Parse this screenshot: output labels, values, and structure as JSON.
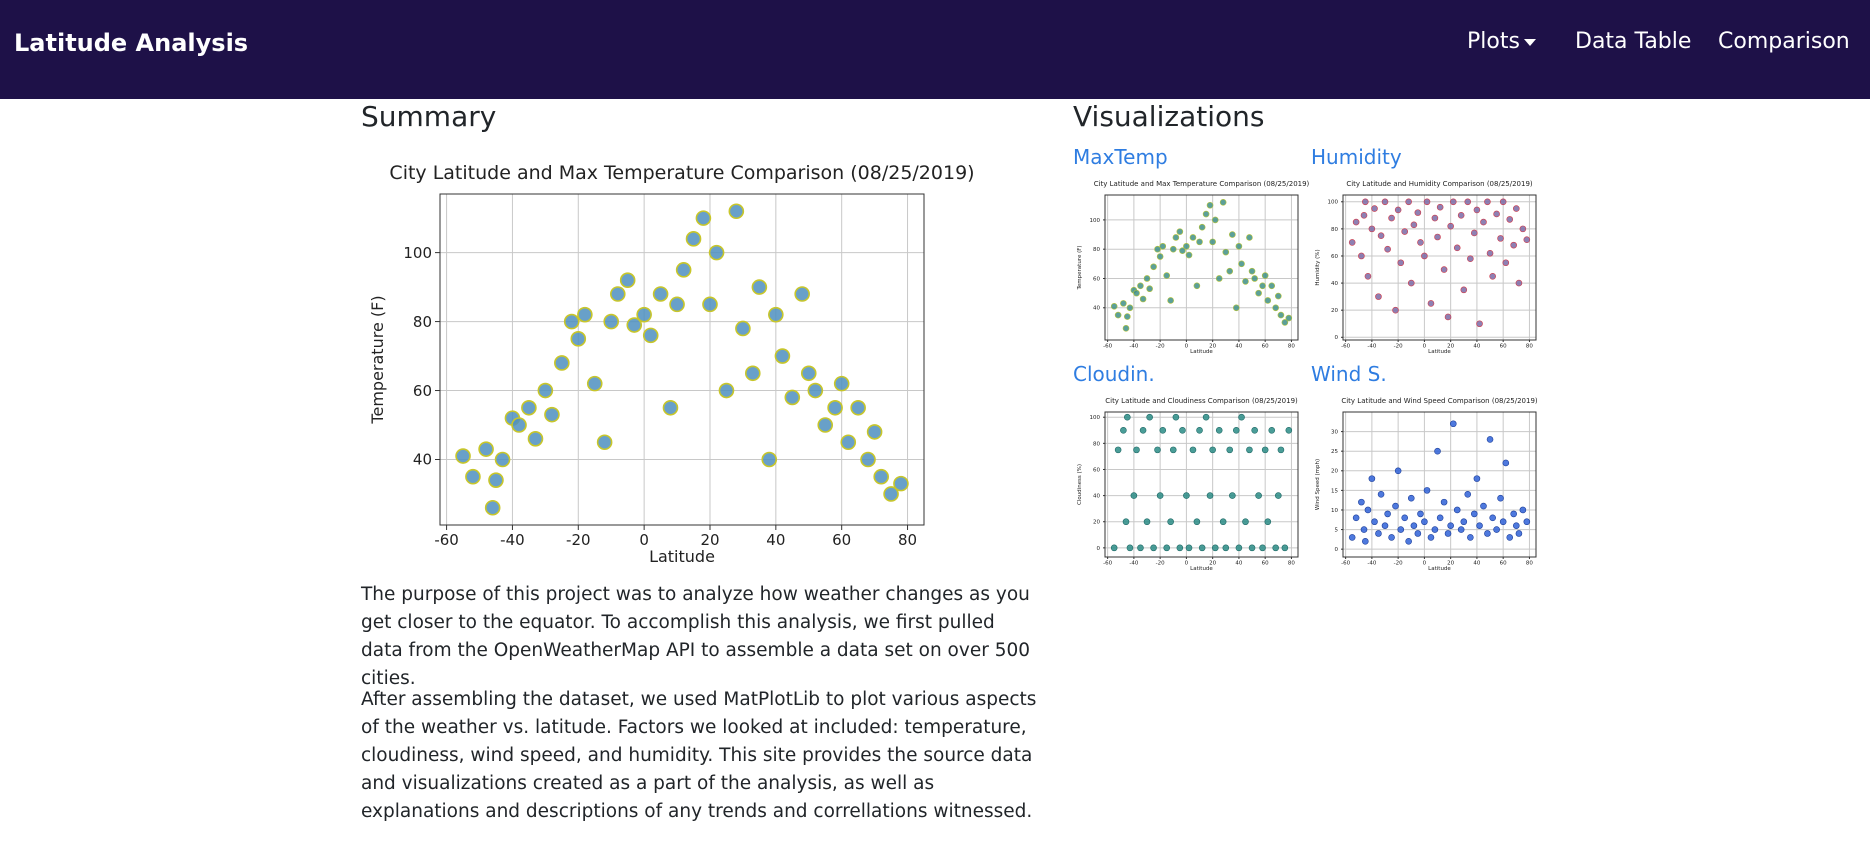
{
  "navbar": {
    "brand": "Latitude Analysis",
    "links": [
      "Plots",
      "Data Table",
      "Comparison"
    ]
  },
  "summary": {
    "heading": "Summary",
    "paragraphs": [
      "The purpose of this project was to analyze how weather changes as you get closer to the equator. To accomplish this analysis, we first pulled data from the OpenWeatherMap API to assemble a data set on over 500 cities.",
      "After assembling the dataset, we used MatPlotLib to plot various aspects of the weather vs. latitude. Factors we looked at included: temperature, cloudiness, wind speed, and humidity. This site provides the source data and visualizations created as a part of the analysis, as well as explanations and descriptions of any trends and correllations witnessed."
    ]
  },
  "visualizations": {
    "heading": "Visualizations",
    "links": [
      "MaxTemp",
      "Humidity",
      "Cloudin.",
      "Wind S."
    ]
  },
  "chart_data": [
    {
      "type": "scatter",
      "title": "City Latitude and Max Temperature Comparison (08/25/2019)",
      "x_label": "Latitude",
      "y_label": "Temperature (F)",
      "color": "#4e8fbf",
      "edge_color": "#c8c62a",
      "grid": true,
      "xlim": [
        -62,
        85
      ],
      "ylim": [
        21,
        117
      ],
      "xticks": [
        -60,
        -40,
        -20,
        0,
        20,
        40,
        60,
        80
      ],
      "yticks": [
        40,
        60,
        80,
        100
      ],
      "x": [
        -55,
        -52,
        -48,
        -46,
        -45,
        -43,
        -40,
        -38,
        -35,
        -33,
        -30,
        -28,
        -25,
        -22,
        -20,
        -18,
        -15,
        -12,
        -10,
        -8,
        -5,
        -3,
        0,
        2,
        5,
        8,
        10,
        12,
        15,
        18,
        20,
        22,
        25,
        28,
        30,
        33,
        35,
        38,
        40,
        42,
        45,
        48,
        50,
        52,
        55,
        58,
        60,
        62,
        65,
        68,
        70,
        72,
        75,
        78
      ],
      "values": [
        41,
        35,
        43,
        26,
        34,
        40,
        52,
        50,
        55,
        46,
        60,
        53,
        68,
        80,
        75,
        82,
        62,
        45,
        80,
        88,
        92,
        79,
        82,
        76,
        88,
        55,
        85,
        95,
        104,
        110,
        85,
        100,
        60,
        112,
        78,
        65,
        90,
        40,
        82,
        70,
        58,
        88,
        65,
        60,
        50,
        55,
        62,
        45,
        55,
        40,
        48,
        35,
        30,
        33
      ]
    },
    {
      "type": "scatter",
      "title": "City Latitude and Max Temperature Comparison (08/25/2019)",
      "x_label": "Latitude",
      "y_label": "Temperature (F)",
      "color": "#3f8f86",
      "edge_color": "#b5c23a",
      "grid": true,
      "xlim": [
        -62,
        85
      ],
      "ylim": [
        18,
        117
      ],
      "xticks": [
        -60,
        -40,
        -20,
        0,
        20,
        40,
        60,
        80
      ],
      "yticks": [
        40,
        60,
        80,
        100
      ],
      "x": [
        -55,
        -52,
        -48,
        -46,
        -45,
        -43,
        -40,
        -38,
        -35,
        -33,
        -30,
        -28,
        -25,
        -22,
        -20,
        -18,
        -15,
        -12,
        -10,
        -8,
        -5,
        -3,
        0,
        2,
        5,
        8,
        10,
        12,
        15,
        18,
        20,
        22,
        25,
        28,
        30,
        33,
        35,
        38,
        40,
        42,
        45,
        48,
        50,
        52,
        55,
        58,
        60,
        62,
        65,
        68,
        70,
        72,
        75,
        78
      ],
      "values": [
        41,
        35,
        43,
        26,
        34,
        40,
        52,
        50,
        55,
        46,
        60,
        53,
        68,
        80,
        75,
        82,
        62,
        45,
        80,
        88,
        92,
        79,
        82,
        76,
        88,
        55,
        85,
        95,
        104,
        110,
        85,
        100,
        60,
        112,
        78,
        65,
        90,
        40,
        82,
        70,
        58,
        88,
        65,
        60,
        50,
        55,
        62,
        45,
        55,
        40,
        48,
        35,
        30,
        33
      ]
    },
    {
      "type": "scatter",
      "title": "City Latitude and Humidity Comparison (08/25/2019)",
      "x_label": "Latitude",
      "y_label": "Humidity (%)",
      "color": "#7a6aa6",
      "edge_color": "#d03a4a",
      "grid": true,
      "xlim": [
        -62,
        85
      ],
      "ylim": [
        -2,
        105
      ],
      "xticks": [
        -60,
        -40,
        -20,
        0,
        20,
        40,
        60,
        80
      ],
      "yticks": [
        0,
        20,
        40,
        60,
        80,
        100
      ],
      "x": [
        -55,
        -52,
        -48,
        -46,
        -45,
        -43,
        -40,
        -38,
        -35,
        -33,
        -30,
        -28,
        -25,
        -22,
        -20,
        -18,
        -15,
        -12,
        -10,
        -8,
        -5,
        -3,
        0,
        2,
        5,
        8,
        10,
        12,
        15,
        18,
        20,
        22,
        25,
        28,
        30,
        33,
        35,
        38,
        40,
        42,
        45,
        48,
        50,
        52,
        55,
        58,
        60,
        62,
        65,
        68,
        70,
        72,
        75,
        78
      ],
      "values": [
        70,
        85,
        60,
        90,
        100,
        45,
        80,
        95,
        30,
        75,
        100,
        65,
        88,
        20,
        94,
        55,
        78,
        100,
        40,
        83,
        92,
        70,
        60,
        100,
        25,
        88,
        74,
        96,
        50,
        15,
        82,
        100,
        66,
        90,
        35,
        100,
        58,
        77,
        94,
        10,
        85,
        100,
        62,
        45,
        91,
        73,
        100,
        55,
        87,
        68,
        95,
        40,
        80,
        72
      ]
    },
    {
      "type": "scatter",
      "title": "City Latitude and Cloudiness Comparison (08/25/2019)",
      "x_label": "Latitude",
      "y_label": "Cloudiness (%)",
      "color": "#2a8c86",
      "edge_color": "#1f6a66",
      "grid": true,
      "xlim": [
        -62,
        85
      ],
      "ylim": [
        -7,
        104
      ],
      "xticks": [
        -60,
        -40,
        -20,
        0,
        20,
        40,
        60,
        80
      ],
      "yticks": [
        0,
        20,
        40,
        60,
        80,
        100
      ],
      "x": [
        -55,
        -52,
        -48,
        -46,
        -45,
        -43,
        -40,
        -38,
        -35,
        -33,
        -30,
        -28,
        -25,
        -22,
        -20,
        -18,
        -15,
        -12,
        -10,
        -8,
        -5,
        -3,
        0,
        2,
        5,
        8,
        10,
        12,
        15,
        18,
        20,
        22,
        25,
        28,
        30,
        33,
        35,
        38,
        40,
        42,
        45,
        48,
        50,
        52,
        55,
        58,
        60,
        62,
        65,
        68,
        70,
        72,
        75,
        78
      ],
      "values": [
        0,
        75,
        90,
        20,
        100,
        0,
        40,
        75,
        0,
        90,
        20,
        100,
        0,
        75,
        40,
        90,
        0,
        20,
        75,
        100,
        0,
        90,
        40,
        0,
        75,
        20,
        90,
        0,
        100,
        40,
        75,
        0,
        90,
        20,
        0,
        75,
        40,
        90,
        0,
        100,
        20,
        75,
        0,
        90,
        40,
        0,
        75,
        20,
        90,
        0,
        40,
        75,
        0,
        90
      ]
    },
    {
      "type": "scatter",
      "title": "City Latitude and Wind Speed Comparison (08/25/2019)",
      "x_label": "Latitude",
      "y_label": "Wind Speed (mph)",
      "color": "#2f62d8",
      "edge_color": "#1d3f9a",
      "grid": true,
      "xlim": [
        -62,
        85
      ],
      "ylim": [
        -2,
        35
      ],
      "xticks": [
        -60,
        -40,
        -20,
        0,
        20,
        40,
        60,
        80
      ],
      "yticks": [
        0,
        5,
        10,
        15,
        20,
        25,
        30
      ],
      "x": [
        -55,
        -52,
        -48,
        -46,
        -45,
        -43,
        -40,
        -38,
        -35,
        -33,
        -30,
        -28,
        -25,
        -22,
        -20,
        -18,
        -15,
        -12,
        -10,
        -8,
        -5,
        -3,
        0,
        2,
        5,
        8,
        10,
        12,
        15,
        18,
        20,
        22,
        25,
        28,
        30,
        33,
        35,
        38,
        40,
        42,
        45,
        48,
        50,
        52,
        55,
        58,
        60,
        62,
        65,
        68,
        70,
        72,
        75,
        78
      ],
      "values": [
        3,
        8,
        12,
        5,
        2,
        10,
        18,
        7,
        4,
        14,
        6,
        9,
        3,
        11,
        20,
        5,
        8,
        2,
        13,
        6,
        4,
        9,
        7,
        15,
        3,
        5,
        25,
        8,
        12,
        4,
        6,
        32,
        10,
        5,
        7,
        14,
        3,
        9,
        18,
        6,
        11,
        4,
        28,
        8,
        5,
        13,
        7,
        22,
        3,
        9,
        6,
        4,
        10,
        7
      ]
    }
  ]
}
